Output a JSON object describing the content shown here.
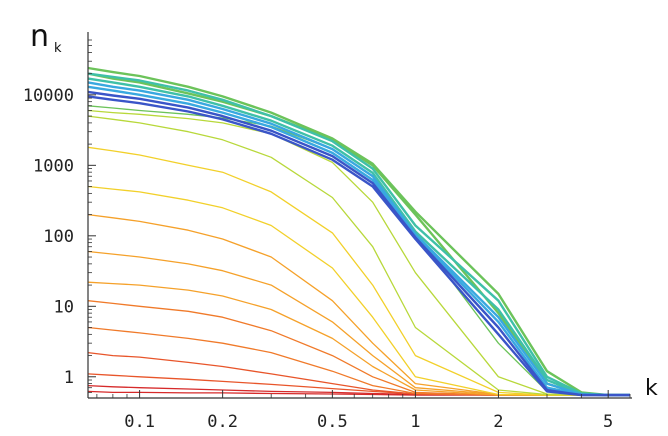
{
  "chart_data": {
    "type": "line",
    "title": "",
    "xlabel": "k",
    "ylabel_main": "n",
    "ylabel_sub": "k",
    "x_scale": "log",
    "y_scale": "log",
    "xlim": [
      0.065,
      6.1
    ],
    "ylim": [
      0.5,
      60000
    ],
    "x_ticks": [
      {
        "value": 0.1,
        "label": "0.1"
      },
      {
        "value": 0.2,
        "label": "0.2"
      },
      {
        "value": 0.5,
        "label": "0.5"
      },
      {
        "value": 1,
        "label": "1"
      },
      {
        "value": 2,
        "label": "2"
      },
      {
        "value": 5,
        "label": "5"
      }
    ],
    "y_ticks": [
      {
        "value": 1,
        "label": "1"
      },
      {
        "value": 10,
        "label": "10"
      },
      {
        "value": 100,
        "label": "100"
      },
      {
        "value": 1000,
        "label": "1000"
      },
      {
        "value": 10000,
        "label": "10000"
      }
    ],
    "grid": false,
    "legend": "none",
    "color_order": "early curves red/orange, later curves yellow, green, cyan, final curves blue",
    "color_stops": [
      "#d62a2a",
      "#e8552a",
      "#f07a2a",
      "#f5a12a",
      "#f2d02a",
      "#b8d83a",
      "#6cc35a",
      "#3fc0a8",
      "#39a8e0",
      "#3a55c8"
    ],
    "series": [
      {
        "x": [
          0.065,
          0.08,
          0.1,
          0.15,
          0.2,
          0.3,
          0.5,
          0.7,
          1,
          2,
          3,
          4,
          5,
          6
        ],
        "y": [
          0.62,
          0.6,
          0.6,
          0.59,
          0.59,
          0.58,
          0.57,
          0.56,
          0.55,
          0.55,
          0.55,
          0.55,
          0.55,
          0.55
        ]
      },
      {
        "x": [
          0.065,
          0.08,
          0.1,
          0.15,
          0.2,
          0.3,
          0.5,
          0.7,
          1,
          2,
          3,
          4,
          5,
          6
        ],
        "y": [
          0.75,
          0.72,
          0.7,
          0.67,
          0.65,
          0.62,
          0.6,
          0.58,
          0.56,
          0.55,
          0.55,
          0.55,
          0.55,
          0.55
        ]
      },
      {
        "x": [
          0.065,
          0.08,
          0.1,
          0.15,
          0.2,
          0.3,
          0.5,
          0.7,
          1,
          2,
          3,
          4,
          5,
          6
        ],
        "y": [
          1.1,
          1.05,
          1.0,
          0.92,
          0.86,
          0.78,
          0.68,
          0.62,
          0.57,
          0.55,
          0.55,
          0.55,
          0.55,
          0.55
        ]
      },
      {
        "x": [
          0.065,
          0.08,
          0.1,
          0.15,
          0.2,
          0.3,
          0.5,
          0.7,
          1,
          2,
          3,
          4,
          5,
          6
        ],
        "y": [
          2.2,
          2.0,
          1.9,
          1.6,
          1.4,
          1.1,
          0.8,
          0.65,
          0.57,
          0.55,
          0.55,
          0.55,
          0.55,
          0.55
        ]
      },
      {
        "x": [
          0.065,
          0.08,
          0.1,
          0.15,
          0.2,
          0.3,
          0.5,
          0.7,
          1,
          2,
          3,
          4,
          5,
          6
        ],
        "y": [
          5,
          4.6,
          4.2,
          3.5,
          3.0,
          2.2,
          1.2,
          0.75,
          0.58,
          0.55,
          0.55,
          0.55,
          0.55,
          0.55
        ]
      },
      {
        "x": [
          0.065,
          0.08,
          0.1,
          0.15,
          0.2,
          0.3,
          0.5,
          0.7,
          1,
          2,
          3,
          4,
          5,
          6
        ],
        "y": [
          12,
          11,
          10,
          8.5,
          7,
          4.5,
          2.0,
          1.0,
          0.6,
          0.55,
          0.55,
          0.55,
          0.55,
          0.55
        ]
      },
      {
        "x": [
          0.065,
          0.08,
          0.1,
          0.15,
          0.2,
          0.3,
          0.5,
          0.7,
          1,
          2,
          3,
          4,
          5,
          6
        ],
        "y": [
          22,
          21,
          20,
          17,
          14,
          9,
          3.5,
          1.4,
          0.65,
          0.55,
          0.55,
          0.55,
          0.55,
          0.55
        ]
      },
      {
        "x": [
          0.065,
          0.08,
          0.1,
          0.15,
          0.2,
          0.3,
          0.5,
          0.7,
          1,
          2,
          3,
          4,
          5,
          6
        ],
        "y": [
          60,
          55,
          50,
          40,
          32,
          20,
          6,
          2.0,
          0.7,
          0.56,
          0.55,
          0.55,
          0.55,
          0.55
        ]
      },
      {
        "x": [
          0.065,
          0.08,
          0.1,
          0.15,
          0.2,
          0.3,
          0.5,
          0.7,
          1,
          2,
          3,
          4,
          5,
          6
        ],
        "y": [
          200,
          180,
          160,
          120,
          90,
          50,
          12,
          3.0,
          0.8,
          0.56,
          0.55,
          0.55,
          0.55,
          0.55
        ]
      },
      {
        "x": [
          0.065,
          0.08,
          0.1,
          0.15,
          0.2,
          0.3,
          0.5,
          0.7,
          1,
          2,
          3,
          4,
          5,
          6
        ],
        "y": [
          500,
          460,
          420,
          320,
          250,
          140,
          35,
          7,
          1.0,
          0.56,
          0.55,
          0.55,
          0.55,
          0.55
        ]
      },
      {
        "x": [
          0.065,
          0.08,
          0.1,
          0.15,
          0.2,
          0.3,
          0.5,
          0.7,
          1,
          2,
          3,
          4,
          5,
          6
        ],
        "y": [
          1800,
          1600,
          1400,
          1000,
          800,
          420,
          110,
          20,
          2.0,
          0.6,
          0.55,
          0.55,
          0.55,
          0.55
        ]
      },
      {
        "x": [
          0.065,
          0.08,
          0.1,
          0.15,
          0.2,
          0.3,
          0.5,
          0.7,
          1,
          2,
          3,
          4,
          5,
          6
        ],
        "y": [
          5000,
          4500,
          4000,
          3000,
          2300,
          1300,
          350,
          70,
          5,
          0.65,
          0.56,
          0.55,
          0.55,
          0.55
        ]
      },
      {
        "x": [
          0.065,
          0.08,
          0.1,
          0.15,
          0.2,
          0.3,
          0.5,
          0.7,
          1,
          2,
          3,
          4,
          5,
          6
        ],
        "y": [
          6000,
          5600,
          5300,
          4600,
          4000,
          2800,
          1100,
          300,
          30,
          1.0,
          0.57,
          0.55,
          0.55,
          0.55
        ]
      },
      {
        "x": [
          0.065,
          0.08,
          0.1,
          0.15,
          0.2,
          0.3,
          0.5,
          0.7,
          1,
          2,
          3,
          4,
          5,
          6
        ],
        "y": [
          7000,
          6500,
          6000,
          5300,
          4700,
          3600,
          1700,
          700,
          110,
          3.0,
          0.62,
          0.55,
          0.55,
          0.55
        ]
      },
      {
        "x": [
          0.065,
          0.08,
          0.1,
          0.15,
          0.2,
          0.3,
          0.5,
          0.7,
          1,
          2,
          3,
          4,
          5,
          6
        ],
        "y": [
          20000,
          17000,
          15000,
          10500,
          8000,
          5000,
          2300,
          1000,
          200,
          8,
          0.8,
          0.56,
          0.55,
          0.55
        ]
      },
      {
        "x": [
          0.065,
          0.08,
          0.1,
          0.15,
          0.2,
          0.3,
          0.5,
          0.7,
          1,
          2,
          3,
          4,
          5,
          6
        ],
        "y": [
          24000,
          21000,
          18500,
          13000,
          9500,
          5600,
          2400,
          1050,
          220,
          15,
          1.2,
          0.6,
          0.55,
          0.55
        ]
      },
      {
        "x": [
          0.065,
          0.08,
          0.1,
          0.15,
          0.2,
          0.3,
          0.5,
          0.7,
          1,
          2,
          3,
          4,
          5,
          6
        ],
        "y": [
          20000,
          18000,
          16000,
          11500,
          8500,
          5000,
          2200,
          900,
          140,
          12,
          1.0,
          0.58,
          0.55,
          0.55
        ]
      },
      {
        "x": [
          0.065,
          0.08,
          0.1,
          0.15,
          0.2,
          0.3,
          0.5,
          0.7,
          1,
          2,
          3,
          4,
          5,
          6
        ],
        "y": [
          17000,
          15000,
          13000,
          9500,
          7000,
          4300,
          1900,
          780,
          115,
          9,
          0.9,
          0.57,
          0.55,
          0.55
        ]
      },
      {
        "x": [
          0.065,
          0.08,
          0.1,
          0.15,
          0.2,
          0.3,
          0.5,
          0.7,
          1,
          2,
          3,
          4,
          5,
          6
        ],
        "y": [
          15000,
          13000,
          11500,
          8500,
          6300,
          3900,
          1700,
          700,
          105,
          7,
          0.8,
          0.56,
          0.55,
          0.55
        ]
      },
      {
        "x": [
          0.065,
          0.08,
          0.1,
          0.15,
          0.2,
          0.3,
          0.5,
          0.7,
          1,
          2,
          3,
          4,
          5,
          6
        ],
        "y": [
          13000,
          11500,
          10000,
          7500,
          5600,
          3500,
          1500,
          620,
          100,
          6,
          0.7,
          0.56,
          0.55,
          0.55
        ]
      },
      {
        "x": [
          0.065,
          0.08,
          0.1,
          0.15,
          0.2,
          0.3,
          0.5,
          0.7,
          1,
          2,
          3,
          4,
          5,
          6
        ],
        "y": [
          11000,
          9800,
          8800,
          6600,
          5000,
          3100,
          1350,
          560,
          95,
          5,
          0.65,
          0.55,
          0.55,
          0.55
        ]
      },
      {
        "x": [
          0.065,
          0.08,
          0.1,
          0.15,
          0.2,
          0.3,
          0.5,
          0.7,
          1,
          2,
          3,
          4,
          5,
          6
        ],
        "y": [
          9500,
          8500,
          7600,
          5800,
          4500,
          2800,
          1200,
          500,
          90,
          4,
          0.62,
          0.55,
          0.55,
          0.55
        ]
      }
    ]
  }
}
